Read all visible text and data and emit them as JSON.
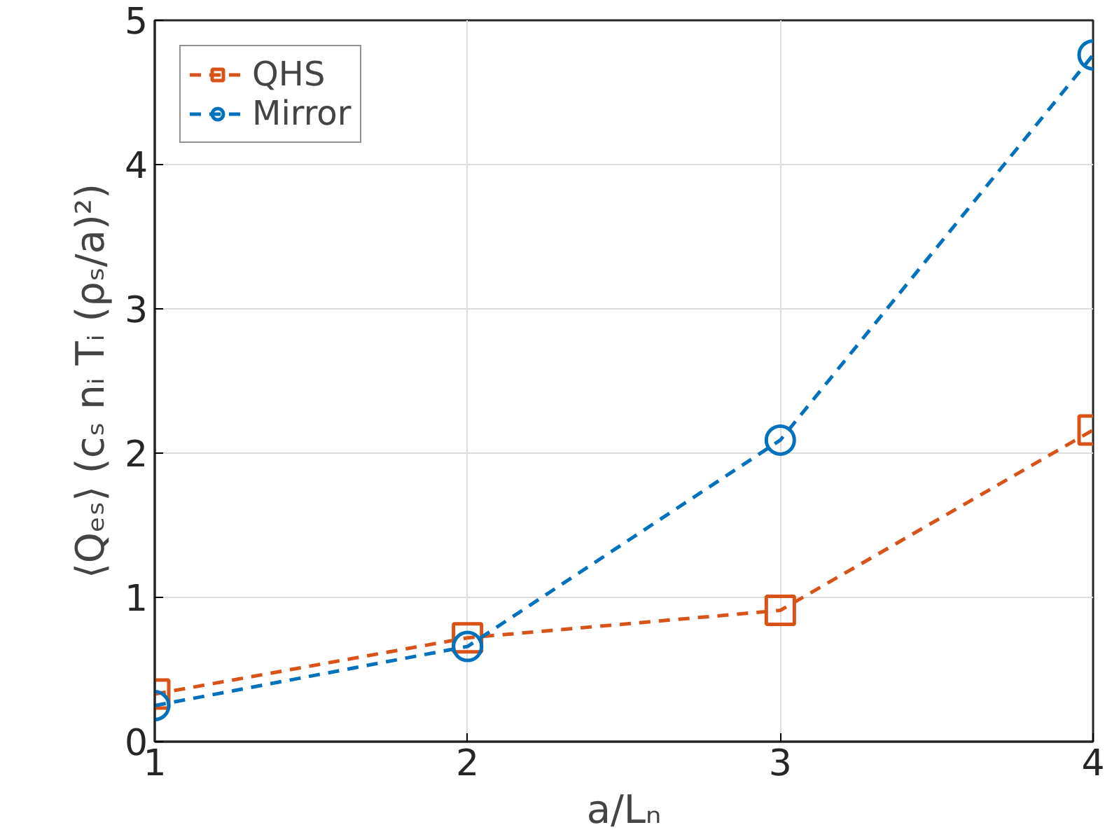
{
  "chart_data": {
    "type": "line",
    "xlabel": "a/Lₙ",
    "ylabel": "⟨Qₑₛ⟩ (cₛ nᵢ Tᵢ (ρₛ/a)²)",
    "x": [
      1,
      2,
      3,
      4
    ],
    "series": [
      {
        "name": "QHS",
        "color": "#d95319",
        "marker": "square",
        "line_style": "dashed",
        "values": [
          0.33,
          0.72,
          0.91,
          2.16
        ]
      },
      {
        "name": "Mirror",
        "color": "#0072bd",
        "marker": "circle",
        "line_style": "dashed",
        "values": [
          0.25,
          0.66,
          2.09,
          4.76
        ]
      }
    ],
    "xlim": [
      1,
      4
    ],
    "ylim": [
      0,
      5
    ],
    "xticks": [
      1,
      2,
      3,
      4
    ],
    "yticks": [
      0,
      1,
      2,
      3,
      4,
      5
    ],
    "grid": true,
    "legend": "top left"
  }
}
